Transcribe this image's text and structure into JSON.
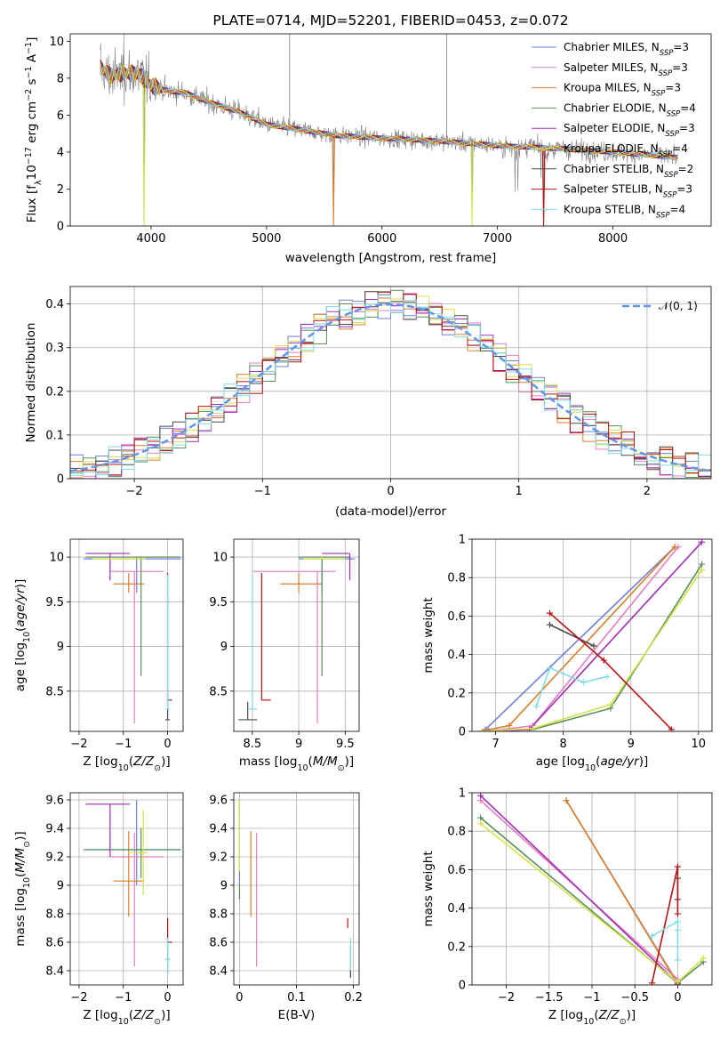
{
  "colors": {
    "grey_spectrum": "#808080",
    "normal_curve": "#6495ED",
    "grid": "#b0b0b0",
    "series": [
      "#6f7fd8",
      "#e57fbf",
      "#dd7f2a",
      "#5a8f5a",
      "#a02cb8",
      "#d4e34a",
      "#4a4a4a",
      "#b81414",
      "#7fdde3"
    ]
  },
  "chart_data": [
    {
      "type": "line",
      "title": "PLATE=0714, MJD=52201, FIBERID=0453, z=0.072",
      "xlabel": "wavelength [Angstrom, rest frame]",
      "ylabel": "Flux [f$_\\lambda$10$^{-17}$ erg cm$^{-2}$ s$^{-1}$ A$^{-1}$]",
      "xlim": [
        3300,
        8850
      ],
      "ylim": [
        0,
        10.4
      ],
      "xticks": [
        4000,
        5000,
        6000,
        7000,
        8000
      ],
      "yticks": [
        0,
        2,
        4,
        6,
        8,
        10
      ],
      "legend_position": "upper-right",
      "series": [
        {
          "name_main": "Chabrier MILES, N",
          "name_sub": "SSP",
          "name_tail": "=3"
        },
        {
          "name_main": "Salpeter MILES, N",
          "name_sub": "SSP",
          "name_tail": "=3"
        },
        {
          "name_main": "Kroupa MILES, N",
          "name_sub": "SSP",
          "name_tail": "=3"
        },
        {
          "name_main": "Chabrier ELODIE, N",
          "name_sub": "SSP",
          "name_tail": "=4"
        },
        {
          "name_main": "Salpeter ELODIE, N",
          "name_sub": "SSP",
          "name_tail": "=3"
        },
        {
          "name_main": "Kroupa ELODIE, N",
          "name_sub": "SSP",
          "name_tail": "=4"
        },
        {
          "name_main": "Chabrier STELIB, N",
          "name_sub": "SSP",
          "name_tail": "=2"
        },
        {
          "name_main": "Salpeter STELIB, N",
          "name_sub": "SSP",
          "name_tail": "=3"
        },
        {
          "name_main": "Kroupa STELIB, N",
          "name_sub": "SSP",
          "name_tail": "=4"
        }
      ],
      "continuum_points": [
        [
          3560,
          8.6
        ],
        [
          3650,
          8.1
        ],
        [
          3750,
          8.3
        ],
        [
          3900,
          8.2
        ],
        [
          4000,
          7.6
        ],
        [
          4150,
          7.3
        ],
        [
          4300,
          7.2
        ],
        [
          4500,
          6.7
        ],
        [
          4750,
          6.2
        ],
        [
          5000,
          5.5
        ],
        [
          5300,
          5.2
        ],
        [
          5600,
          4.9
        ],
        [
          6000,
          4.75
        ],
        [
          6500,
          4.6
        ],
        [
          7000,
          4.35
        ],
        [
          7500,
          4.2
        ],
        [
          8000,
          4.0
        ],
        [
          8300,
          3.85
        ],
        [
          8560,
          3.7
        ]
      ],
      "sharp_features": [
        [
          3940,
          0
        ],
        [
          5580,
          0
        ],
        [
          6780,
          0
        ],
        [
          7400,
          0
        ],
        [
          5200,
          10.4
        ],
        [
          6560,
          10.4
        ]
      ]
    },
    {
      "type": "step",
      "xlabel": "(data-model)/error",
      "ylabel": "Normed distribution",
      "xlim": [
        -2.5,
        2.5
      ],
      "ylim": [
        0,
        0.44
      ],
      "xticks": [
        -2,
        -1,
        0,
        1,
        2
      ],
      "yticks": [
        0.0,
        0.1,
        0.2,
        0.3,
        0.4
      ],
      "legend_position": "upper-right",
      "legend_label": "𝒩(0, 1)",
      "bin_width": 0.1
    },
    {
      "type": "errorbar",
      "xlabel": "Z [log10(Z/Z⊙)]",
      "ylabel": "age  [log10(age/yr)]",
      "xlim": [
        -2.2,
        0.35
      ],
      "ylim": [
        8.05,
        10.2
      ],
      "xticks": [
        -2,
        -1,
        0
      ],
      "yticks": [
        8.5,
        9.0,
        9.5,
        10.0
      ],
      "points": [
        {
          "x": -0.7,
          "xerr": [
            1.2,
            1.0
          ],
          "y": 9.98,
          "yerr": [
            0.38,
            0.02
          ],
          "color": 0
        },
        {
          "x": -0.75,
          "xerr": [
            0.55,
            0.65
          ],
          "y": 9.84,
          "yerr": [
            1.7,
            0.0
          ],
          "color": 1
        },
        {
          "x": -0.88,
          "xerr": [
            0.35,
            0.35
          ],
          "y": 9.7,
          "yerr": [
            0.1,
            0.12
          ],
          "color": 2
        },
        {
          "x": -0.6,
          "xerr": [
            1.25,
            0.9
          ],
          "y": 10.0,
          "yerr": [
            1.33,
            0.0
          ],
          "color": 3
        },
        {
          "x": -1.3,
          "xerr": [
            0.55,
            0.45
          ],
          "y": 10.04,
          "yerr": [
            0.3,
            0.0
          ],
          "color": 4
        },
        {
          "x": -0.8,
          "xerr": [
            0.9,
            0.3
          ],
          "y": 9.98,
          "yerr": [
            0.0,
            0.03
          ],
          "color": 5
        },
        {
          "x": 0.0,
          "xerr": [
            0.05,
            0.05
          ],
          "y": 8.18,
          "yerr": [
            0.0,
            0.2
          ],
          "color": 6
        },
        {
          "x": 0.0,
          "xerr": [
            0.0,
            0.1
          ],
          "y": 8.4,
          "yerr": [
            0.0,
            1.42
          ],
          "color": 7
        },
        {
          "x": 0.0,
          "xerr": [
            0.05,
            0.05
          ],
          "y": 8.3,
          "yerr": [
            0.0,
            1.5
          ],
          "color": 8
        }
      ]
    },
    {
      "type": "errorbar",
      "xlabel": "mass [log10(M/M⊙)]",
      "xlim": [
        8.3,
        9.65
      ],
      "ylim": [
        8.05,
        10.2
      ],
      "xticks": [
        8.5,
        9.0,
        9.5
      ],
      "yticks": [
        8.5,
        9.0,
        9.5,
        10.0
      ],
      "points": [
        {
          "x": 9.25,
          "xerr": [
            0.25,
            0.35
          ],
          "y": 9.98,
          "yerr": [
            0.38,
            0.02
          ],
          "color": 0
        },
        {
          "x": 9.2,
          "xerr": [
            0.7,
            0.2
          ],
          "y": 9.84,
          "yerr": [
            1.7,
            0.0
          ],
          "color": 1
        },
        {
          "x": 9.0,
          "xerr": [
            0.2,
            0.25
          ],
          "y": 9.7,
          "yerr": [
            0.1,
            0.12
          ],
          "color": 2
        },
        {
          "x": 9.25,
          "xerr": [
            0.25,
            0.3
          ],
          "y": 10.0,
          "yerr": [
            1.33,
            0.0
          ],
          "color": 3
        },
        {
          "x": 9.55,
          "xerr": [
            0.3,
            0.0
          ],
          "y": 10.04,
          "yerr": [
            0.3,
            0.0
          ],
          "color": 4
        },
        {
          "x": 9.25,
          "xerr": [
            0.2,
            0.25
          ],
          "y": 9.98,
          "yerr": [
            0.0,
            0.03
          ],
          "color": 5
        },
        {
          "x": 8.45,
          "xerr": [
            0.1,
            0.1
          ],
          "y": 8.18,
          "yerr": [
            0.0,
            0.2
          ],
          "color": 6
        },
        {
          "x": 8.6,
          "xerr": [
            0.0,
            0.1
          ],
          "y": 8.4,
          "yerr": [
            0.0,
            1.42
          ],
          "color": 7
        },
        {
          "x": 8.5,
          "xerr": [
            0.05,
            0.05
          ],
          "y": 8.3,
          "yerr": [
            0.0,
            1.5
          ],
          "color": 8
        }
      ]
    },
    {
      "type": "line",
      "xlabel": "age  [log10(age/yr)]",
      "ylabel": "mass weight",
      "xlim": [
        6.65,
        10.2
      ],
      "ylim": [
        0,
        1.0
      ],
      "xticks": [
        7,
        8,
        9,
        10
      ],
      "yticks": [
        0.0,
        0.2,
        0.4,
        0.6,
        0.8,
        1.0
      ],
      "series": [
        {
          "color": 0,
          "x": [
            6.85,
            9.65
          ],
          "y": [
            0.01,
            0.96
          ]
        },
        {
          "color": 1,
          "x": [
            7.0,
            7.55,
            9.7
          ],
          "y": [
            0.005,
            0.03,
            0.96
          ]
        },
        {
          "color": 2,
          "x": [
            6.85,
            7.2,
            9.65
          ],
          "y": [
            0.005,
            0.03,
            0.96
          ]
        },
        {
          "color": 3,
          "x": [
            6.8,
            7.55,
            8.7,
            10.05
          ],
          "y": [
            0.0,
            0.01,
            0.12,
            0.87
          ]
        },
        {
          "color": 4,
          "x": [
            6.9,
            7.5,
            10.05
          ],
          "y": [
            0.0,
            0.01,
            0.985
          ]
        },
        {
          "color": 5,
          "x": [
            6.8,
            7.55,
            8.7,
            10.05
          ],
          "y": [
            0.0,
            0.015,
            0.14,
            0.84
          ]
        },
        {
          "color": 6,
          "x": [
            7.8,
            8.45
          ],
          "y": [
            0.555,
            0.445
          ]
        },
        {
          "color": 7,
          "x": [
            7.8,
            8.6,
            9.6
          ],
          "y": [
            0.615,
            0.37,
            0.01
          ]
        },
        {
          "color": 8,
          "x": [
            7.6,
            7.8,
            8.3,
            8.65
          ],
          "y": [
            0.13,
            0.33,
            0.255,
            0.285
          ]
        }
      ]
    },
    {
      "type": "errorbar",
      "xlabel": "Z [log10(Z/Z⊙)]",
      "ylabel": "mass [log10(M/M⊙)]",
      "xlim": [
        -2.2,
        0.35
      ],
      "ylim": [
        8.3,
        9.65
      ],
      "xticks": [
        -2,
        -1,
        0
      ],
      "yticks": [
        8.4,
        8.6,
        8.8,
        9.0,
        9.2,
        9.4,
        9.6
      ],
      "points": [
        {
          "x": -0.7,
          "xerr": [
            1.2,
            1.0
          ],
          "y": 9.25,
          "yerr": [
            0.25,
            0.35
          ],
          "color": 0
        },
        {
          "x": -0.75,
          "xerr": [
            0.55,
            0.65
          ],
          "y": 9.2,
          "yerr": [
            0.77,
            0.17
          ],
          "color": 1
        },
        {
          "x": -0.88,
          "xerr": [
            0.35,
            0.35
          ],
          "y": 9.03,
          "yerr": [
            0.25,
            0.35
          ],
          "color": 2
        },
        {
          "x": -0.6,
          "xerr": [
            1.25,
            0.9
          ],
          "y": 9.25,
          "yerr": [
            0.2,
            0.15
          ],
          "color": 3
        },
        {
          "x": -1.3,
          "xerr": [
            0.55,
            0.45
          ],
          "y": 9.57,
          "yerr": [
            0.37,
            0.0
          ],
          "color": 4
        },
        {
          "x": -0.55,
          "xerr": [
            0.3,
            0.1
          ],
          "y": 9.23,
          "yerr": [
            0.3,
            0.3
          ],
          "color": 5
        },
        {
          "x": 0.0,
          "xerr": [
            0.05,
            0.05
          ],
          "y": 8.48,
          "yerr": [
            0.1,
            0.1
          ],
          "color": 6
        },
        {
          "x": 0.0,
          "xerr": [
            0.0,
            0.1
          ],
          "y": 8.6,
          "yerr": [
            0.0,
            0.17
          ],
          "color": 7
        },
        {
          "x": 0.0,
          "xerr": [
            0.05,
            0.05
          ],
          "y": 8.48,
          "yerr": [
            0.1,
            0.15
          ],
          "color": 8
        }
      ]
    },
    {
      "type": "errorbar",
      "xlabel": "E(B-V)",
      "xlim": [
        -0.01,
        0.21
      ],
      "ylim": [
        8.3,
        9.65
      ],
      "xticks": [
        0.0,
        0.1,
        0.2
      ],
      "yticks": [
        8.4,
        8.6,
        8.8,
        9.0,
        9.2,
        9.4,
        9.6
      ],
      "points": [
        {
          "x": 0.0,
          "y": 9.25,
          "yerr": [
            0.25,
            0.35
          ],
          "color": 0
        },
        {
          "x": 0.03,
          "y": 9.2,
          "yerr": [
            0.77,
            0.17
          ],
          "color": 1
        },
        {
          "x": 0.02,
          "y": 9.03,
          "yerr": [
            0.25,
            0.35
          ],
          "color": 2
        },
        {
          "x": 0.0,
          "y": 9.0,
          "yerr": [
            0.1,
            0.0
          ],
          "color": 3
        },
        {
          "x": 0.0,
          "y": 9.55,
          "yerr": [
            0.0,
            0.03
          ],
          "color": 4
        },
        {
          "x": 0.0,
          "y": 9.3,
          "yerr": [
            0.2,
            0.3
          ],
          "color": 5
        },
        {
          "x": 0.195,
          "y": 8.48,
          "yerr": [
            0.13,
            0.1
          ],
          "color": 6
        },
        {
          "x": 0.19,
          "y": 8.7,
          "yerr": [
            0.0,
            0.07
          ],
          "color": 7
        },
        {
          "x": 0.195,
          "y": 8.5,
          "yerr": [
            0.1,
            0.13
          ],
          "color": 8
        }
      ]
    },
    {
      "type": "line",
      "xlabel": "Z [log10(Z/Z⊙)]",
      "ylabel": "mass weight",
      "xlim": [
        -2.4,
        0.4
      ],
      "ylim": [
        0,
        1.0
      ],
      "xticks": [
        -2.0,
        -1.5,
        -1.0,
        -0.5,
        0.0
      ],
      "yticks": [
        0.0,
        0.2,
        0.4,
        0.6,
        0.8,
        1.0
      ],
      "series": [
        {
          "color": 0,
          "x": [
            -1.3,
            0.0
          ],
          "y": [
            0.96,
            0.01
          ]
        },
        {
          "color": 1,
          "x": [
            -2.3,
            0.0
          ],
          "y": [
            0.96,
            0.03
          ]
        },
        {
          "color": 2,
          "x": [
            -1.3,
            0.0
          ],
          "y": [
            0.96,
            0.005
          ]
        },
        {
          "color": 3,
          "x": [
            -2.3,
            0.0,
            0.3
          ],
          "y": [
            0.87,
            0.01,
            0.12
          ]
        },
        {
          "color": 4,
          "x": [
            -2.3,
            0.0
          ],
          "y": [
            0.985,
            0.01
          ]
        },
        {
          "color": 5,
          "x": [
            -2.3,
            0.0,
            0.3
          ],
          "y": [
            0.84,
            0.015,
            0.14
          ]
        },
        {
          "color": 6,
          "x": [
            0.0,
            0.0
          ],
          "y": [
            0.555,
            0.445
          ]
        },
        {
          "color": 7,
          "x": [
            -0.3,
            0.0,
            0.0
          ],
          "y": [
            0.01,
            0.615,
            0.37
          ]
        },
        {
          "color": 8,
          "x": [
            -0.3,
            0.0,
            0.0,
            0.0
          ],
          "y": [
            0.255,
            0.33,
            0.13,
            0.285
          ]
        }
      ]
    }
  ]
}
